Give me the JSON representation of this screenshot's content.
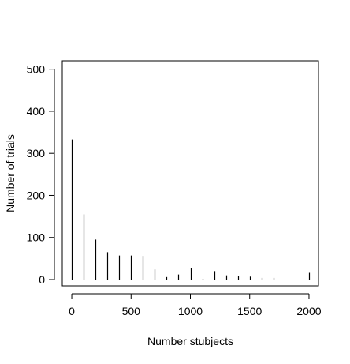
{
  "chart_data": {
    "type": "bar",
    "style": "histogram-spikes",
    "title": "",
    "xlabel": "Number stubjects",
    "ylabel": "Number of trials",
    "xlim": [
      -80,
      2080
    ],
    "ylim": [
      -15,
      520
    ],
    "xticks": [
      0,
      500,
      1000,
      1500,
      2000
    ],
    "yticks": [
      0,
      100,
      200,
      300,
      400,
      500
    ],
    "x": [
      0,
      100,
      200,
      300,
      400,
      500,
      600,
      700,
      800,
      900,
      1000,
      1100,
      1200,
      1300,
      1400,
      1500,
      1600,
      1700,
      2000
    ],
    "values": [
      333,
      155,
      95,
      65,
      57,
      57,
      56,
      24,
      6,
      12,
      27,
      2,
      20,
      10,
      9,
      7,
      4,
      4,
      16
    ],
    "grid": false,
    "legend": "none",
    "colors": {
      "bars": "#000000",
      "axes": "#000000",
      "background": "#ffffff"
    }
  }
}
